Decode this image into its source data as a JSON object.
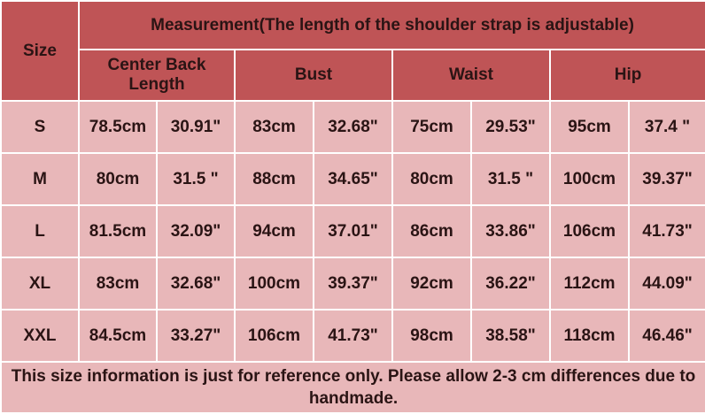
{
  "header": {
    "size": "Size",
    "title": "Measurement(The length of the shoulder strap is adjustable)",
    "columns": [
      "Center Back Length",
      "Bust",
      "Waist",
      "Hip"
    ]
  },
  "table": {
    "rows": [
      [
        "S",
        "78.5cm",
        "30.91\"",
        "83cm",
        "32.68\"",
        "75cm",
        "29.53\"",
        "95cm",
        "37.4 \""
      ],
      [
        "M",
        "80cm",
        "31.5 \"",
        "88cm",
        "34.65\"",
        "80cm",
        "31.5 \"",
        "100cm",
        "39.37\""
      ],
      [
        "L",
        "81.5cm",
        "32.09\"",
        "94cm",
        "37.01\"",
        "86cm",
        "33.86\"",
        "106cm",
        "41.73\""
      ],
      [
        "XL",
        "83cm",
        "32.68\"",
        "100cm",
        "39.37\"",
        "92cm",
        "36.22\"",
        "112cm",
        "44.09\""
      ],
      [
        "XXL",
        "84.5cm",
        "33.27\"",
        "106cm",
        "41.73\"",
        "98cm",
        "38.58\"",
        "118cm",
        "46.46\""
      ]
    ]
  },
  "footer": {
    "note": "This size information is just for reference only. Please allow 2-3 cm differences due to handmade."
  }
}
